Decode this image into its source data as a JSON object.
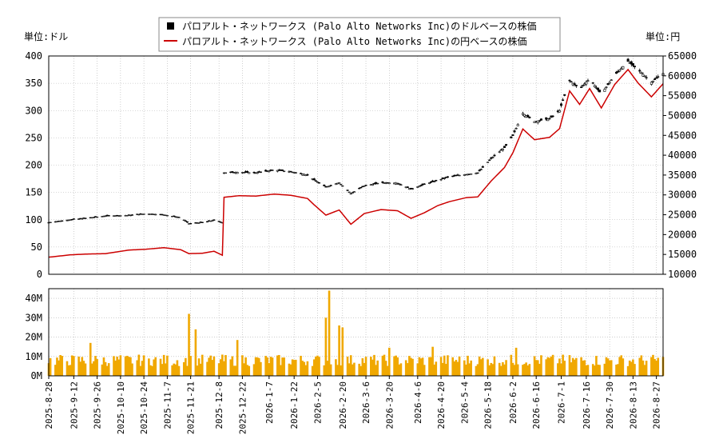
{
  "chart_data": [
    {
      "type": "candlestick+line",
      "legend": {
        "usd_label": "パロアルト・ネットワークス (Palo Alto Networks Inc)のドルベースの株価",
        "jpy_label": "パロアルト・ネットワークス (Palo Alto Networks Inc)の円ベースの株価",
        "placement": "top-center"
      },
      "left_unit": "単位:ドル",
      "right_unit": "単位:円",
      "ylim_left": [
        0,
        400
      ],
      "ylim_right": [
        10000,
        65000
      ],
      "yticks_left": [
        0,
        50,
        100,
        150,
        200,
        250,
        300,
        350,
        400
      ],
      "yticks_right": [
        10000,
        15000,
        20000,
        25000,
        30000,
        35000,
        40000,
        45000,
        50000,
        55000,
        60000,
        65000
      ],
      "grid": true,
      "colors": {
        "usd": "#000000",
        "jpy": "#cc0000",
        "grid": "#b0b0b0"
      },
      "xrange": [
        "2025-08-28",
        "2026-08-31"
      ],
      "usd_price": {
        "dates": [
          "2025-08-28",
          "2025-09-10",
          "2025-09-20",
          "2025-10-01",
          "2025-10-15",
          "2025-10-25",
          "2025-11-05",
          "2025-11-15",
          "2025-11-20",
          "2025-11-28",
          "2025-12-05",
          "2025-12-10",
          "2025-12-11",
          "2025-12-20",
          "2025-12-30",
          "2026-01-10",
          "2026-01-20",
          "2026-01-30",
          "2026-02-03",
          "2026-02-10",
          "2026-02-18",
          "2026-02-25",
          "2026-03-05",
          "2026-03-15",
          "2026-03-25",
          "2026-04-02",
          "2026-04-10",
          "2026-04-18",
          "2026-04-25",
          "2026-05-05",
          "2026-05-12",
          "2026-05-20",
          "2026-05-28",
          "2026-06-02",
          "2026-06-08",
          "2026-06-15",
          "2026-06-24",
          "2026-06-30",
          "2026-07-06",
          "2026-07-12",
          "2026-07-18",
          "2026-07-25",
          "2026-08-02",
          "2026-08-10",
          "2026-08-16",
          "2026-08-24",
          "2026-08-31"
        ],
        "close": [
          95,
          100,
          103,
          107,
          108,
          111,
          109,
          104,
          93,
          95,
          99,
          95,
          186,
          187,
          186,
          191,
          188,
          182,
          173,
          160,
          168,
          148,
          162,
          168,
          167,
          156,
          165,
          172,
          179,
          183,
          186,
          212,
          232,
          254,
          295,
          280,
          285,
          300,
          355,
          340,
          358,
          330,
          365,
          390,
          375,
          352,
          368
        ]
      },
      "jpy_price": {
        "dates": [
          "2025-08-28",
          "2025-09-10",
          "2025-09-20",
          "2025-10-01",
          "2025-10-15",
          "2025-10-25",
          "2025-11-05",
          "2025-11-15",
          "2025-11-20",
          "2025-11-28",
          "2025-12-05",
          "2025-12-10",
          "2025-12-11",
          "2025-12-20",
          "2025-12-30",
          "2026-01-10",
          "2026-01-20",
          "2026-01-30",
          "2026-02-03",
          "2026-02-10",
          "2026-02-18",
          "2026-02-25",
          "2026-03-05",
          "2026-03-15",
          "2026-03-25",
          "2026-04-02",
          "2026-04-10",
          "2026-04-18",
          "2026-04-25",
          "2026-05-05",
          "2026-05-12",
          "2026-05-20",
          "2026-05-28",
          "2026-06-02",
          "2026-06-08",
          "2026-06-15",
          "2026-06-24",
          "2026-06-30",
          "2026-07-06",
          "2026-07-12",
          "2026-07-18",
          "2026-07-25",
          "2026-08-02",
          "2026-08-10",
          "2026-08-16",
          "2026-08-24",
          "2026-08-31"
        ],
        "close": [
          14300,
          14900,
          15100,
          15200,
          16100,
          16300,
          16700,
          16200,
          15200,
          15300,
          15800,
          14800,
          29400,
          29800,
          29700,
          30200,
          29900,
          29100,
          27500,
          24900,
          26200,
          22600,
          25300,
          26300,
          26000,
          24100,
          25500,
          27300,
          28300,
          29300,
          29500,
          33500,
          36900,
          40600,
          46600,
          43900,
          44500,
          46700,
          56200,
          52800,
          56800,
          51900,
          57800,
          61600,
          58200,
          54700,
          58000
        ]
      },
      "usd_tick_labels": [
        "0",
        "50",
        "100",
        "150",
        "200",
        "250",
        "300",
        "350",
        "400"
      ],
      "jpy_tick_labels": [
        "10000",
        "15000",
        "20000",
        "25000",
        "30000",
        "35000",
        "40000",
        "45000",
        "50000",
        "55000",
        "60000",
        "65000"
      ]
    },
    {
      "type": "bar",
      "series_color": "#f0a800",
      "ylim": [
        0,
        45000000
      ],
      "yticks": [
        0,
        10000000,
        20000000,
        30000000,
        40000000
      ],
      "ytick_labels": [
        "0M",
        "10M",
        "20M",
        "30M",
        "40M"
      ],
      "x_tick_labels": [
        "2025-8-28",
        "2025-9-12",
        "2025-9-26",
        "2025-10-10",
        "2025-10-24",
        "2025-11-7",
        "2025-11-21",
        "2025-12-8",
        "2025-12-22",
        "2026-1-7",
        "2026-1-22",
        "2026-2-5",
        "2026-2-20",
        "2026-3-6",
        "2026-3-20",
        "2026-4-6",
        "2026-4-20",
        "2026-5-4",
        "2026-5-18",
        "2026-6-2",
        "2026-6-16",
        "2026-7-1",
        "2026-7-16",
        "2026-7-30",
        "2026-8-13",
        "2026-8-27"
      ],
      "x_tick_dates": [
        "2025-08-28",
        "2025-09-12",
        "2025-09-26",
        "2025-10-10",
        "2025-10-24",
        "2025-11-07",
        "2025-11-21",
        "2025-12-08",
        "2025-12-22",
        "2026-01-07",
        "2026-01-22",
        "2026-02-05",
        "2026-02-20",
        "2026-03-06",
        "2026-03-20",
        "2026-04-06",
        "2026-04-20",
        "2026-05-04",
        "2026-05-18",
        "2026-06-02",
        "2026-06-16",
        "2026-07-01",
        "2026-07-16",
        "2026-07-30",
        "2026-08-13",
        "2026-08-27"
      ],
      "volume_spikes": [
        {
          "date": "2025-09-22",
          "value": 17000000
        },
        {
          "date": "2025-11-20",
          "value": 32000000
        },
        {
          "date": "2025-11-24",
          "value": 24000000
        },
        {
          "date": "2025-12-19",
          "value": 18500000
        },
        {
          "date": "2026-02-10",
          "value": 30000000
        },
        {
          "date": "2026-02-12",
          "value": 44000000
        },
        {
          "date": "2026-02-18",
          "value": 26000000
        },
        {
          "date": "2026-02-20",
          "value": 25000000
        },
        {
          "date": "2026-03-20",
          "value": 14500000
        },
        {
          "date": "2026-04-15",
          "value": 15000000
        },
        {
          "date": "2026-06-04",
          "value": 14500000
        }
      ]
    }
  ]
}
